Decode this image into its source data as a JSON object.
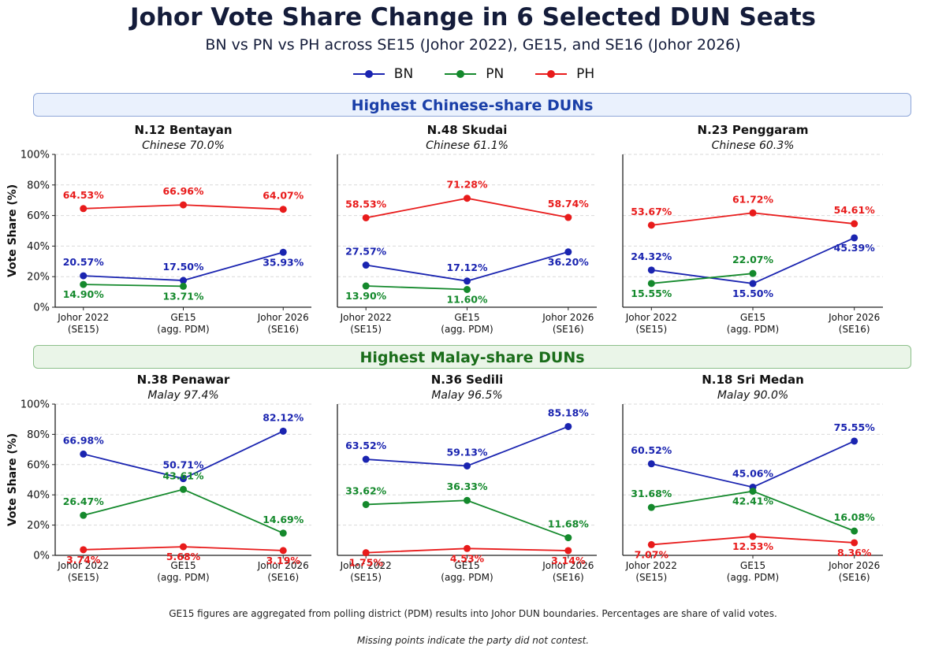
{
  "title": "Johor Vote Share Change in 6 Selected DUN Seats",
  "subtitle": "BN vs PN vs PH across SE15 (Johor 2022), GE15, and SE16 (Johor 2026)",
  "legend": [
    {
      "name": "BN",
      "color": "#1a24b0"
    },
    {
      "name": "PN",
      "color": "#14892c"
    },
    {
      "name": "PH",
      "color": "#e81b1b"
    }
  ],
  "sections": {
    "top": "Highest Chinese-share DUNs",
    "bottom": "Highest Malay-share DUNs"
  },
  "footnotes": {
    "line1": "GE15 figures are aggregated from polling district (PDM) results into Johor DUN boundaries. Percentages are share of valid votes.",
    "line2": "Missing points indicate the party did not contest."
  },
  "chart_data": [
    {
      "type": "line",
      "title": "N.12 Bentayan",
      "subtitle": "Chinese 70.0%",
      "categories": [
        "Johor 2022\n(SE15)",
        "GE15\n(agg. PDM)",
        "Johor 2026\n(SE16)"
      ],
      "ylabel": "Vote Share (%)",
      "ylim": [
        0,
        100
      ],
      "yticks": [
        "0%",
        "20%",
        "40%",
        "60%",
        "80%",
        "100%"
      ],
      "series": [
        {
          "name": "BN",
          "values": [
            20.57,
            17.5,
            35.93
          ],
          "labels": [
            "20.57%",
            "17.50%",
            "35.93%"
          ]
        },
        {
          "name": "PN",
          "values": [
            14.9,
            13.71,
            null
          ],
          "labels": [
            "14.90%",
            "13.71%",
            null
          ]
        },
        {
          "name": "PH",
          "values": [
            64.53,
            66.96,
            64.07
          ],
          "labels": [
            "64.53%",
            "66.96%",
            "64.07%"
          ]
        }
      ]
    },
    {
      "type": "line",
      "title": "N.48 Skudai",
      "subtitle": "Chinese 61.1%",
      "categories": [
        "Johor 2022\n(SE15)",
        "GE15\n(agg. PDM)",
        "Johor 2026\n(SE16)"
      ],
      "ylabel": "",
      "ylim": [
        0,
        100
      ],
      "yticks": [],
      "series": [
        {
          "name": "BN",
          "values": [
            27.57,
            17.12,
            36.2
          ],
          "labels": [
            "27.57%",
            "17.12%",
            "36.20%"
          ]
        },
        {
          "name": "PN",
          "values": [
            13.9,
            11.6,
            null
          ],
          "labels": [
            "13.90%",
            "11.60%",
            null
          ]
        },
        {
          "name": "PH",
          "values": [
            58.53,
            71.28,
            58.74
          ],
          "labels": [
            "58.53%",
            "71.28%",
            "58.74%"
          ]
        }
      ]
    },
    {
      "type": "line",
      "title": "N.23 Penggaram",
      "subtitle": "Chinese 60.3%",
      "categories": [
        "Johor 2022\n(SE15)",
        "GE15\n(agg. PDM)",
        "Johor 2026\n(SE16)"
      ],
      "ylabel": "",
      "ylim": [
        0,
        100
      ],
      "yticks": [],
      "series": [
        {
          "name": "BN",
          "values": [
            24.32,
            15.5,
            45.39
          ],
          "labels": [
            "24.32%",
            "15.50%",
            "45.39%"
          ]
        },
        {
          "name": "PN",
          "values": [
            15.55,
            22.07,
            null
          ],
          "labels": [
            "15.55%",
            "22.07%",
            null
          ]
        },
        {
          "name": "PH",
          "values": [
            53.67,
            61.72,
            54.61
          ],
          "labels": [
            "53.67%",
            "61.72%",
            "54.61%"
          ]
        }
      ]
    },
    {
      "type": "line",
      "title": "N.38 Penawar",
      "subtitle": "Malay 97.4%",
      "categories": [
        "Johor 2022\n(SE15)",
        "GE15\n(agg. PDM)",
        "Johor 2026\n(SE16)"
      ],
      "ylabel": "Vote Share (%)",
      "ylim": [
        0,
        100
      ],
      "yticks": [
        "0%",
        "20%",
        "40%",
        "60%",
        "80%",
        "100%"
      ],
      "series": [
        {
          "name": "BN",
          "values": [
            66.98,
            50.71,
            82.12
          ],
          "labels": [
            "66.98%",
            "50.71%",
            "82.12%"
          ]
        },
        {
          "name": "PN",
          "values": [
            26.47,
            43.61,
            14.69
          ],
          "labels": [
            "26.47%",
            "43.61%",
            "14.69%"
          ]
        },
        {
          "name": "PH",
          "values": [
            3.74,
            5.68,
            3.19
          ],
          "labels": [
            "3.74%",
            "5.68%",
            "3.19%"
          ]
        }
      ]
    },
    {
      "type": "line",
      "title": "N.36 Sedili",
      "subtitle": "Malay 96.5%",
      "categories": [
        "Johor 2022\n(SE15)",
        "GE15\n(agg. PDM)",
        "Johor 2026\n(SE16)"
      ],
      "ylabel": "",
      "ylim": [
        0,
        100
      ],
      "yticks": [],
      "series": [
        {
          "name": "BN",
          "values": [
            63.52,
            59.13,
            85.18
          ],
          "labels": [
            "63.52%",
            "59.13%",
            "85.18%"
          ]
        },
        {
          "name": "PN",
          "values": [
            33.62,
            36.33,
            11.68
          ],
          "labels": [
            "33.62%",
            "36.33%",
            "11.68%"
          ]
        },
        {
          "name": "PH",
          "values": [
            1.75,
            4.53,
            3.14
          ],
          "labels": [
            "1.75%",
            "4.53%",
            "3.14%"
          ]
        }
      ]
    },
    {
      "type": "line",
      "title": "N.18 Sri Medan",
      "subtitle": "Malay 90.0%",
      "categories": [
        "Johor 2022\n(SE15)",
        "GE15\n(agg. PDM)",
        "Johor 2026\n(SE16)"
      ],
      "ylabel": "",
      "ylim": [
        0,
        100
      ],
      "yticks": [],
      "series": [
        {
          "name": "BN",
          "values": [
            60.52,
            45.06,
            75.55
          ],
          "labels": [
            "60.52%",
            "45.06%",
            "75.55%"
          ]
        },
        {
          "name": "PN",
          "values": [
            31.68,
            42.41,
            16.08
          ],
          "labels": [
            "31.68%",
            "42.41%",
            "16.08%"
          ]
        },
        {
          "name": "PH",
          "values": [
            7.07,
            12.53,
            8.36
          ],
          "labels": [
            "7.07%",
            "12.53%",
            "8.36%"
          ]
        }
      ]
    }
  ]
}
